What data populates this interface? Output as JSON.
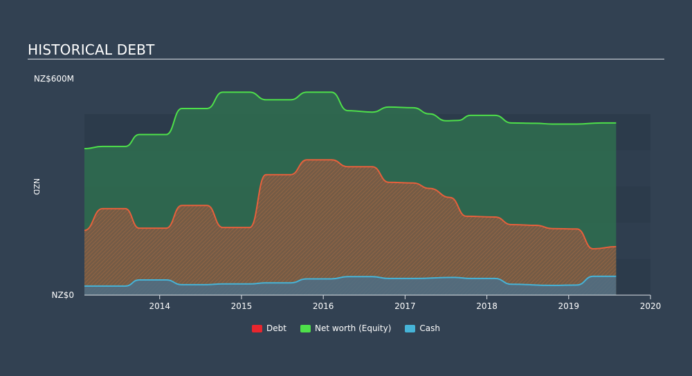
{
  "title": "HISTORICAL DEBT",
  "chart_data": {
    "type": "area",
    "ylabel": "NZD",
    "y_tick_labels": [
      "NZ$0",
      "NZ$600M"
    ],
    "ylim": [
      0,
      600
    ],
    "xlim": [
      2013.08,
      2020.0
    ],
    "x_tick_labels": [
      "2014",
      "2015",
      "2016",
      "2017",
      "2018",
      "2019",
      "2020"
    ],
    "x_ticks": [
      2014,
      2015,
      2016,
      2017,
      2018,
      2019,
      2020
    ],
    "grid": true,
    "legend_position": "bottom",
    "series": [
      {
        "name": "Net worth (Equity)",
        "key": "equity",
        "color": "#4ee04a",
        "fill": "#2f6b4f",
        "points": [
          [
            2013.08,
            405
          ],
          [
            2013.3,
            411
          ],
          [
            2013.58,
            411
          ],
          [
            2013.75,
            444
          ],
          [
            2014.08,
            444
          ],
          [
            2014.27,
            516
          ],
          [
            2014.58,
            516
          ],
          [
            2014.77,
            561
          ],
          [
            2015.1,
            561
          ],
          [
            2015.3,
            540
          ],
          [
            2015.6,
            540
          ],
          [
            2015.8,
            561
          ],
          [
            2016.1,
            561
          ],
          [
            2016.3,
            510
          ],
          [
            2016.6,
            506
          ],
          [
            2016.8,
            520
          ],
          [
            2017.1,
            518
          ],
          [
            2017.3,
            501
          ],
          [
            2017.5,
            482
          ],
          [
            2017.65,
            483
          ],
          [
            2017.8,
            497
          ],
          [
            2018.1,
            497
          ],
          [
            2018.3,
            476
          ],
          [
            2018.6,
            475
          ],
          [
            2018.8,
            473
          ],
          [
            2019.1,
            473
          ],
          [
            2019.4,
            476
          ],
          [
            2019.58,
            476
          ]
        ]
      },
      {
        "name": "Debt",
        "key": "debt",
        "color": "#e8603c",
        "fill": "#7c5a45",
        "points": [
          [
            2013.08,
            179
          ],
          [
            2013.3,
            239
          ],
          [
            2013.58,
            239
          ],
          [
            2013.75,
            185
          ],
          [
            2014.08,
            185
          ],
          [
            2014.27,
            248
          ],
          [
            2014.58,
            248
          ],
          [
            2014.77,
            187
          ],
          [
            2015.1,
            187
          ],
          [
            2015.3,
            333
          ],
          [
            2015.6,
            333
          ],
          [
            2015.8,
            374
          ],
          [
            2016.1,
            374
          ],
          [
            2016.3,
            355
          ],
          [
            2016.6,
            355
          ],
          [
            2016.8,
            312
          ],
          [
            2017.1,
            310
          ],
          [
            2017.3,
            295
          ],
          [
            2017.55,
            270
          ],
          [
            2017.75,
            218
          ],
          [
            2018.1,
            216
          ],
          [
            2018.3,
            195
          ],
          [
            2018.6,
            193
          ],
          [
            2018.8,
            184
          ],
          [
            2019.1,
            183
          ],
          [
            2019.3,
            128
          ],
          [
            2019.58,
            134
          ]
        ]
      },
      {
        "name": "Cash",
        "key": "cash",
        "color": "#46b4d8",
        "fill": "#4d6f86",
        "points": [
          [
            2013.08,
            25
          ],
          [
            2013.58,
            25
          ],
          [
            2013.75,
            42
          ],
          [
            2014.08,
            42
          ],
          [
            2014.27,
            29
          ],
          [
            2014.58,
            29
          ],
          [
            2014.77,
            31
          ],
          [
            2015.1,
            31
          ],
          [
            2015.3,
            34
          ],
          [
            2015.6,
            34
          ],
          [
            2015.8,
            45
          ],
          [
            2016.1,
            45
          ],
          [
            2016.3,
            51
          ],
          [
            2016.6,
            51
          ],
          [
            2016.8,
            46
          ],
          [
            2017.1,
            46
          ],
          [
            2017.6,
            49
          ],
          [
            2017.8,
            46
          ],
          [
            2018.1,
            46
          ],
          [
            2018.3,
            30
          ],
          [
            2018.8,
            27
          ],
          [
            2019.1,
            28
          ],
          [
            2019.3,
            52
          ],
          [
            2019.58,
            52
          ]
        ]
      }
    ],
    "legend": [
      {
        "label": "Debt",
        "color": "#e8262e"
      },
      {
        "label": "Net worth (Equity)",
        "color": "#4ee04a"
      },
      {
        "label": "Cash",
        "color": "#46b4d8"
      }
    ]
  }
}
